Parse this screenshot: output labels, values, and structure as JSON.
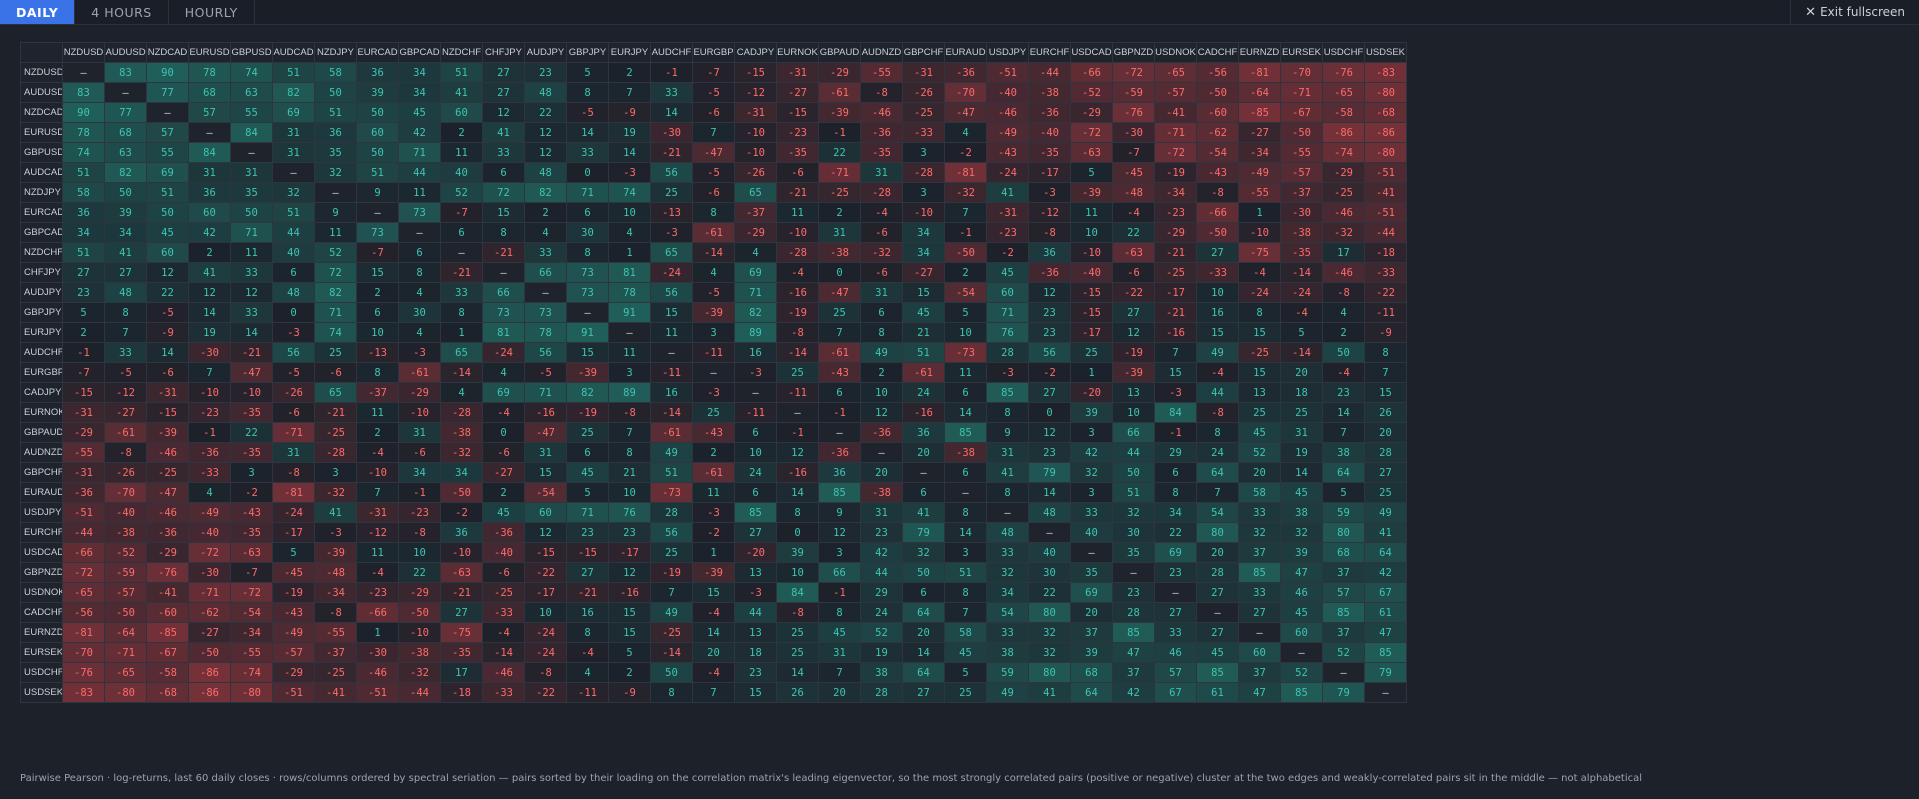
{
  "tabs": [
    {
      "label": "DAILY",
      "active": true
    },
    {
      "label": "4 HOURS",
      "active": false
    },
    {
      "label": "HOURLY",
      "active": false
    }
  ],
  "exit_label": "Exit fullscreen",
  "caption": "Pairwise Pearson · log-returns, last 60 daily closes · rows/columns ordered by spectral seriation — pairs sorted by their loading on the correlation matrix's leading eigenvector, so the most strongly correlated pairs (positive or negative) cluster at the two edges and weakly-correlated pairs sit in the middle — not alphabetical",
  "colors": {
    "positive": "#2a9d8f",
    "negative": "#e05a5a",
    "diag": "#1e232c",
    "accent": "#3a73e8"
  },
  "chart_data": {
    "type": "heatmap",
    "diagonal_label": "—",
    "pairs": [
      "NZDUSD",
      "AUDUSD",
      "NZDCAD",
      "EURUSD",
      "GBPUSD",
      "AUDCAD",
      "NZDJPY",
      "EURCAD",
      "GBPCAD",
      "NZDCHF",
      "CHFJPY",
      "AUDJPY",
      "GBPJPY",
      "EURJPY",
      "AUDCHF",
      "EURGBP",
      "CADJPY",
      "EURNOK",
      "GBPAUD",
      "AUDNZD",
      "GBPCHF",
      "EURAUD",
      "USDJPY",
      "EURCHF",
      "USDCAD",
      "GBPNZD",
      "USDNOK",
      "CADCHF",
      "EURNZD",
      "EURSEK",
      "USDCHF",
      "USDSEK"
    ],
    "values": [
      [
        null,
        83,
        90,
        78,
        74,
        51,
        58,
        36,
        34,
        51,
        27,
        23,
        5,
        2,
        -1,
        -7,
        -15,
        -31,
        -29,
        -55,
        -31,
        -36,
        -51,
        -44,
        -66,
        -72,
        -65,
        -56,
        -81,
        -70,
        -76,
        -83
      ],
      [
        83,
        null,
        77,
        68,
        63,
        82,
        50,
        39,
        34,
        41,
        27,
        48,
        8,
        7,
        33,
        -5,
        -12,
        -27,
        -61,
        -8,
        -26,
        -70,
        -40,
        -38,
        -52,
        -59,
        -57,
        -50,
        -64,
        -71,
        -65,
        -80
      ],
      [
        90,
        77,
        null,
        57,
        55,
        69,
        51,
        50,
        45,
        60,
        12,
        22,
        -5,
        -9,
        14,
        -6,
        -31,
        -15,
        -39,
        -46,
        -25,
        -47,
        -46,
        -36,
        -29,
        -76,
        -41,
        -60,
        -85,
        -67,
        -58,
        -68
      ],
      [
        78,
        68,
        57,
        null,
        84,
        31,
        36,
        60,
        42,
        2,
        41,
        12,
        14,
        19,
        -30,
        7,
        -10,
        -23,
        -1,
        -36,
        -33,
        4,
        -49,
        -40,
        -72,
        -30,
        -71,
        -62,
        -27,
        -50,
        -86,
        -86
      ],
      [
        74,
        63,
        55,
        84,
        null,
        31,
        35,
        50,
        71,
        11,
        33,
        12,
        33,
        14,
        -21,
        -47,
        -10,
        -35,
        22,
        -35,
        3,
        -2,
        -43,
        -35,
        -63,
        -7,
        -72,
        -54,
        -34,
        -55,
        -74,
        -80
      ],
      [
        51,
        82,
        69,
        31,
        31,
        null,
        32,
        51,
        44,
        40,
        6,
        48,
        0,
        -3,
        56,
        -5,
        -26,
        -6,
        -71,
        31,
        -28,
        -81,
        -24,
        -17,
        5,
        -45,
        -19,
        -43,
        -49,
        -57,
        -29,
        -51
      ],
      [
        58,
        50,
        51,
        36,
        35,
        32,
        null,
        9,
        11,
        52,
        72,
        82,
        71,
        74,
        25,
        -6,
        65,
        -21,
        -25,
        -28,
        3,
        -32,
        41,
        -3,
        -39,
        -48,
        -34,
        -8,
        -55,
        -37,
        -25,
        -41
      ],
      [
        36,
        39,
        50,
        60,
        50,
        51,
        9,
        null,
        73,
        -7,
        15,
        2,
        6,
        10,
        -13,
        8,
        -37,
        11,
        2,
        -4,
        -10,
        7,
        -31,
        -12,
        11,
        -4,
        -23,
        -66,
        1,
        -30,
        -46,
        -51
      ],
      [
        34,
        34,
        45,
        42,
        71,
        44,
        11,
        73,
        null,
        6,
        8,
        4,
        30,
        4,
        -3,
        -61,
        -29,
        -10,
        31,
        -6,
        34,
        -1,
        -23,
        -8,
        10,
        22,
        -29,
        -50,
        -10,
        -38,
        -32,
        -44
      ],
      [
        51,
        41,
        60,
        2,
        11,
        40,
        52,
        -7,
        6,
        null,
        -21,
        33,
        8,
        1,
        65,
        -14,
        4,
        -28,
        -38,
        -32,
        34,
        -50,
        -2,
        36,
        -10,
        -63,
        -21,
        27,
        -75,
        -35,
        17,
        -18
      ],
      [
        27,
        27,
        12,
        41,
        33,
        6,
        72,
        15,
        8,
        -21,
        null,
        66,
        73,
        81,
        -24,
        4,
        69,
        -4,
        0,
        -6,
        -27,
        2,
        45,
        -36,
        -40,
        -6,
        -25,
        -33,
        -4,
        -14,
        -46,
        -33
      ],
      [
        23,
        48,
        22,
        12,
        12,
        48,
        82,
        2,
        4,
        33,
        66,
        null,
        73,
        78,
        56,
        -5,
        71,
        -16,
        -47,
        31,
        15,
        -54,
        60,
        12,
        -15,
        -22,
        -17,
        10,
        -24,
        -24,
        -8,
        -22
      ],
      [
        5,
        8,
        -5,
        14,
        33,
        0,
        71,
        6,
        30,
        8,
        73,
        73,
        null,
        91,
        15,
        -39,
        82,
        -19,
        25,
        6,
        45,
        5,
        71,
        23,
        -15,
        27,
        -21,
        16,
        8,
        -4,
        4,
        -11
      ],
      [
        2,
        7,
        -9,
        19,
        14,
        -3,
        74,
        10,
        4,
        1,
        81,
        78,
        91,
        null,
        11,
        3,
        89,
        -8,
        7,
        8,
        21,
        10,
        76,
        23,
        -17,
        12,
        -16,
        15,
        15,
        5,
        2,
        -9
      ],
      [
        -1,
        33,
        14,
        -30,
        -21,
        56,
        25,
        -13,
        -3,
        65,
        -24,
        56,
        15,
        11,
        null,
        -11,
        16,
        -14,
        -61,
        49,
        51,
        -73,
        28,
        56,
        25,
        -19,
        7,
        49,
        -25,
        -14,
        50,
        8
      ],
      [
        -7,
        -5,
        -6,
        7,
        -47,
        -5,
        -6,
        8,
        -61,
        -14,
        4,
        -5,
        -39,
        3,
        -11,
        null,
        -3,
        25,
        -43,
        2,
        -61,
        11,
        -3,
        -2,
        1,
        -39,
        15,
        -4,
        15,
        20,
        -4,
        7
      ],
      [
        -15,
        -12,
        -31,
        -10,
        -10,
        -26,
        65,
        -37,
        -29,
        4,
        69,
        71,
        82,
        89,
        16,
        -3,
        null,
        -11,
        6,
        10,
        24,
        6,
        85,
        27,
        -20,
        13,
        -3,
        44,
        13,
        18,
        23,
        15
      ],
      [
        -31,
        -27,
        -15,
        -23,
        -35,
        -6,
        -21,
        11,
        -10,
        -28,
        -4,
        -16,
        -19,
        -8,
        -14,
        25,
        -11,
        null,
        -1,
        12,
        -16,
        14,
        8,
        0,
        39,
        10,
        84,
        -8,
        25,
        25,
        14,
        26
      ],
      [
        -29,
        -61,
        -39,
        -1,
        22,
        -71,
        -25,
        2,
        31,
        -38,
        0,
        -47,
        25,
        7,
        -61,
        -43,
        6,
        -1,
        null,
        -36,
        36,
        85,
        9,
        12,
        3,
        66,
        -1,
        8,
        45,
        31,
        7,
        20
      ],
      [
        -55,
        -8,
        -46,
        -36,
        -35,
        31,
        -28,
        -4,
        -6,
        -32,
        -6,
        31,
        6,
        8,
        49,
        2,
        10,
        12,
        -36,
        null,
        20,
        -38,
        31,
        23,
        42,
        44,
        29,
        24,
        52,
        19,
        38,
        28
      ],
      [
        -31,
        -26,
        -25,
        -33,
        3,
        -8,
        3,
        -10,
        34,
        34,
        -27,
        15,
        45,
        21,
        51,
        -61,
        24,
        -16,
        36,
        20,
        null,
        6,
        41,
        79,
        32,
        50,
        6,
        64,
        20,
        14,
        64,
        27
      ],
      [
        -36,
        -70,
        -47,
        4,
        -2,
        -81,
        -32,
        7,
        -1,
        -50,
        2,
        -54,
        5,
        10,
        -73,
        11,
        6,
        14,
        85,
        -38,
        6,
        null,
        8,
        14,
        3,
        51,
        8,
        7,
        58,
        45,
        5,
        25
      ],
      [
        -51,
        -40,
        -46,
        -49,
        -43,
        -24,
        41,
        -31,
        -23,
        -2,
        45,
        60,
        71,
        76,
        28,
        -3,
        85,
        8,
        9,
        31,
        41,
        8,
        null,
        48,
        33,
        32,
        34,
        54,
        33,
        38,
        59,
        49
      ],
      [
        -44,
        -38,
        -36,
        -40,
        -35,
        -17,
        -3,
        -12,
        -8,
        36,
        -36,
        12,
        23,
        23,
        56,
        -2,
        27,
        0,
        12,
        23,
        79,
        14,
        48,
        null,
        40,
        30,
        22,
        80,
        32,
        32,
        80,
        41
      ],
      [
        -66,
        -52,
        -29,
        -72,
        -63,
        5,
        -39,
        11,
        10,
        -10,
        -40,
        -15,
        -15,
        -17,
        25,
        1,
        -20,
        39,
        3,
        42,
        32,
        3,
        33,
        40,
        null,
        35,
        69,
        20,
        37,
        39,
        68,
        64
      ],
      [
        -72,
        -59,
        -76,
        -30,
        -7,
        -45,
        -48,
        -4,
        22,
        -63,
        -6,
        -22,
        27,
        12,
        -19,
        -39,
        13,
        10,
        66,
        44,
        50,
        51,
        32,
        30,
        35,
        null,
        23,
        28,
        85,
        47,
        37,
        42
      ],
      [
        -65,
        -57,
        -41,
        -71,
        -72,
        -19,
        -34,
        -23,
        -29,
        -21,
        -25,
        -17,
        -21,
        -16,
        7,
        15,
        -3,
        84,
        -1,
        29,
        6,
        8,
        34,
        22,
        69,
        23,
        null,
        27,
        33,
        46,
        57,
        67
      ],
      [
        -56,
        -50,
        -60,
        -62,
        -54,
        -43,
        -8,
        -66,
        -50,
        27,
        -33,
        10,
        16,
        15,
        49,
        -4,
        44,
        -8,
        8,
        24,
        64,
        7,
        54,
        80,
        20,
        28,
        27,
        null,
        27,
        45,
        85,
        61
      ],
      [
        -81,
        -64,
        -85,
        -27,
        -34,
        -49,
        -55,
        1,
        -10,
        -75,
        -4,
        -24,
        8,
        15,
        -25,
        14,
        13,
        25,
        45,
        52,
        20,
        58,
        33,
        32,
        37,
        85,
        33,
        27,
        null,
        60,
        37,
        47
      ],
      [
        -70,
        -71,
        -67,
        -50,
        -55,
        -57,
        -37,
        -30,
        -38,
        -35,
        -14,
        -24,
        -4,
        5,
        -14,
        20,
        18,
        25,
        31,
        19,
        14,
        45,
        38,
        32,
        39,
        47,
        46,
        45,
        60,
        null,
        52,
        85
      ],
      [
        -76,
        -65,
        -58,
        -86,
        -74,
        -29,
        -25,
        -46,
        -32,
        17,
        -46,
        -8,
        4,
        2,
        50,
        -4,
        23,
        14,
        7,
        38,
        64,
        5,
        59,
        80,
        68,
        37,
        57,
        85,
        37,
        52,
        null,
        79
      ],
      [
        -83,
        -80,
        -68,
        -86,
        -80,
        -51,
        -41,
        -51,
        -44,
        -18,
        -33,
        -22,
        -11,
        -9,
        8,
        7,
        15,
        26,
        20,
        28,
        27,
        25,
        49,
        41,
        64,
        42,
        67,
        61,
        47,
        85,
        79,
        null
      ]
    ]
  }
}
